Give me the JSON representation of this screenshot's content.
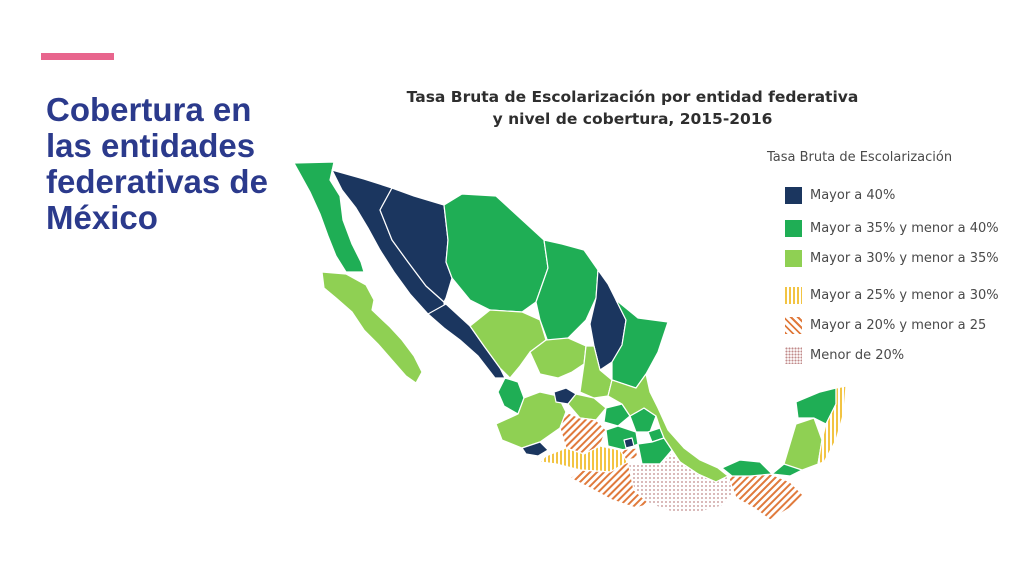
{
  "slide": {
    "title": "Cobertura en las entidades federativas de México"
  },
  "map": {
    "title_line1": "Tasa Bruta de Escolarización por entidad federativa",
    "title_line2": "y nivel de cobertura, 2015-2016"
  },
  "legend": {
    "title": "Tasa Bruta de Escolarización",
    "items": [
      {
        "label": "Mayor a 40%",
        "color": "#1b365f",
        "pattern": "solid"
      },
      {
        "label": "Mayor a 35% y menor a 40%",
        "color": "#1fae55",
        "pattern": "solid"
      },
      {
        "label": "Mayor a 30% y menor a 35%",
        "color": "#8fd053",
        "pattern": "solid"
      },
      {
        "label": "Mayor a 25% y menor a 30%",
        "color": "#f2c443",
        "pattern": "vertical-stripes"
      },
      {
        "label": "Mayor a 20% y menor a 25",
        "color": "#e07a3c",
        "pattern": "diagonal-stripes"
      },
      {
        "label": "Menor de 20%",
        "color": "#c08a8a",
        "pattern": "dots"
      }
    ]
  },
  "colors": {
    "accent_bar": "#e8658d",
    "title_text": "#2b3a8c"
  }
}
